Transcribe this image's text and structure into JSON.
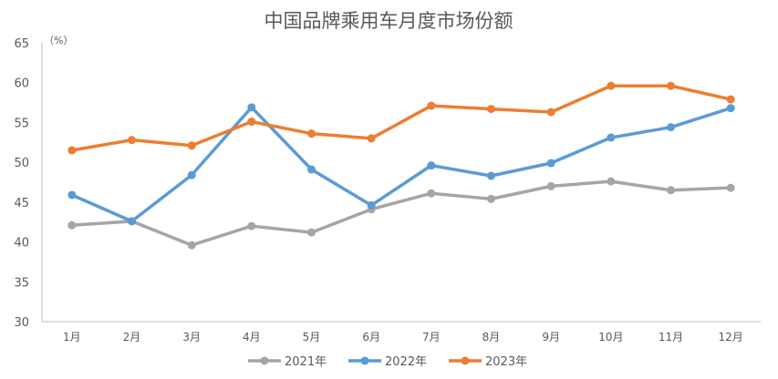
{
  "chart_data": {
    "type": "line",
    "title": "中国品牌乘用车月度市场份额",
    "ylabel": "（%）",
    "xlabel": "",
    "ylim": [
      30,
      65
    ],
    "yticks": [
      30,
      35,
      40,
      45,
      50,
      55,
      60,
      65
    ],
    "grid": false,
    "legend": "bottom",
    "categories": [
      "1月",
      "2月",
      "3月",
      "4月",
      "5月",
      "6月",
      "7月",
      "8月",
      "9月",
      "10月",
      "11月",
      "12月"
    ],
    "series": [
      {
        "name": "2021年",
        "color": "#a5a5a5",
        "values": [
          42.1,
          42.6,
          39.6,
          42.0,
          41.2,
          44.1,
          46.1,
          45.4,
          47.0,
          47.6,
          46.5,
          46.8
        ]
      },
      {
        "name": "2022年",
        "color": "#5b9bd5",
        "values": [
          45.9,
          42.6,
          48.4,
          56.9,
          49.1,
          44.6,
          49.6,
          48.3,
          49.9,
          53.1,
          54.4,
          56.8
        ]
      },
      {
        "name": "2023年",
        "color": "#ed7d31",
        "values": [
          51.5,
          52.8,
          52.1,
          55.1,
          53.6,
          53.0,
          57.1,
          56.7,
          56.3,
          59.6,
          59.6,
          57.9
        ]
      }
    ]
  }
}
